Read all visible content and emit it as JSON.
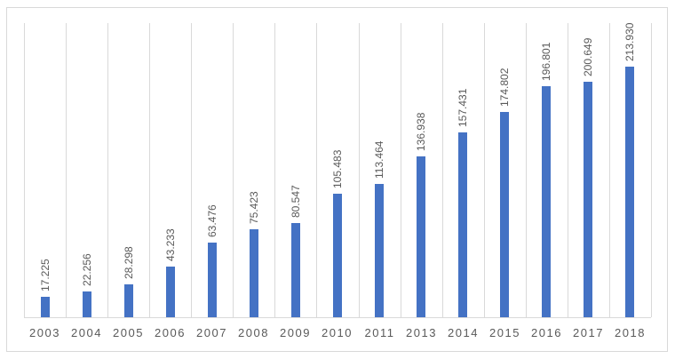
{
  "chart_data": {
    "type": "bar",
    "title": "",
    "xlabel": "",
    "ylabel": "",
    "categories": [
      "2003",
      "2004",
      "2005",
      "2006",
      "2007",
      "2008",
      "2009",
      "2010",
      "2011",
      "2013",
      "2014",
      "2015",
      "2016",
      "2017",
      "2018"
    ],
    "values": [
      17.225,
      22.256,
      28.298,
      43.233,
      63.476,
      75.423,
      80.547,
      105.483,
      113.464,
      136.938,
      157.431,
      174.802,
      196.801,
      200.649,
      213.93
    ],
    "value_labels": [
      "17.225",
      "22.256",
      "28.298",
      "43.233",
      "63.476",
      "75.423",
      "80.547",
      "105.483",
      "113.464",
      "136.938",
      "157.431",
      "174.802",
      "196.801",
      "200.649",
      "213.930"
    ],
    "ylim": [
      0,
      251
    ],
    "grid": "vertical",
    "legend": "none",
    "bar_color": "#4472c4",
    "label_color": "#595959",
    "gridline_color": "#d9d9d9"
  }
}
